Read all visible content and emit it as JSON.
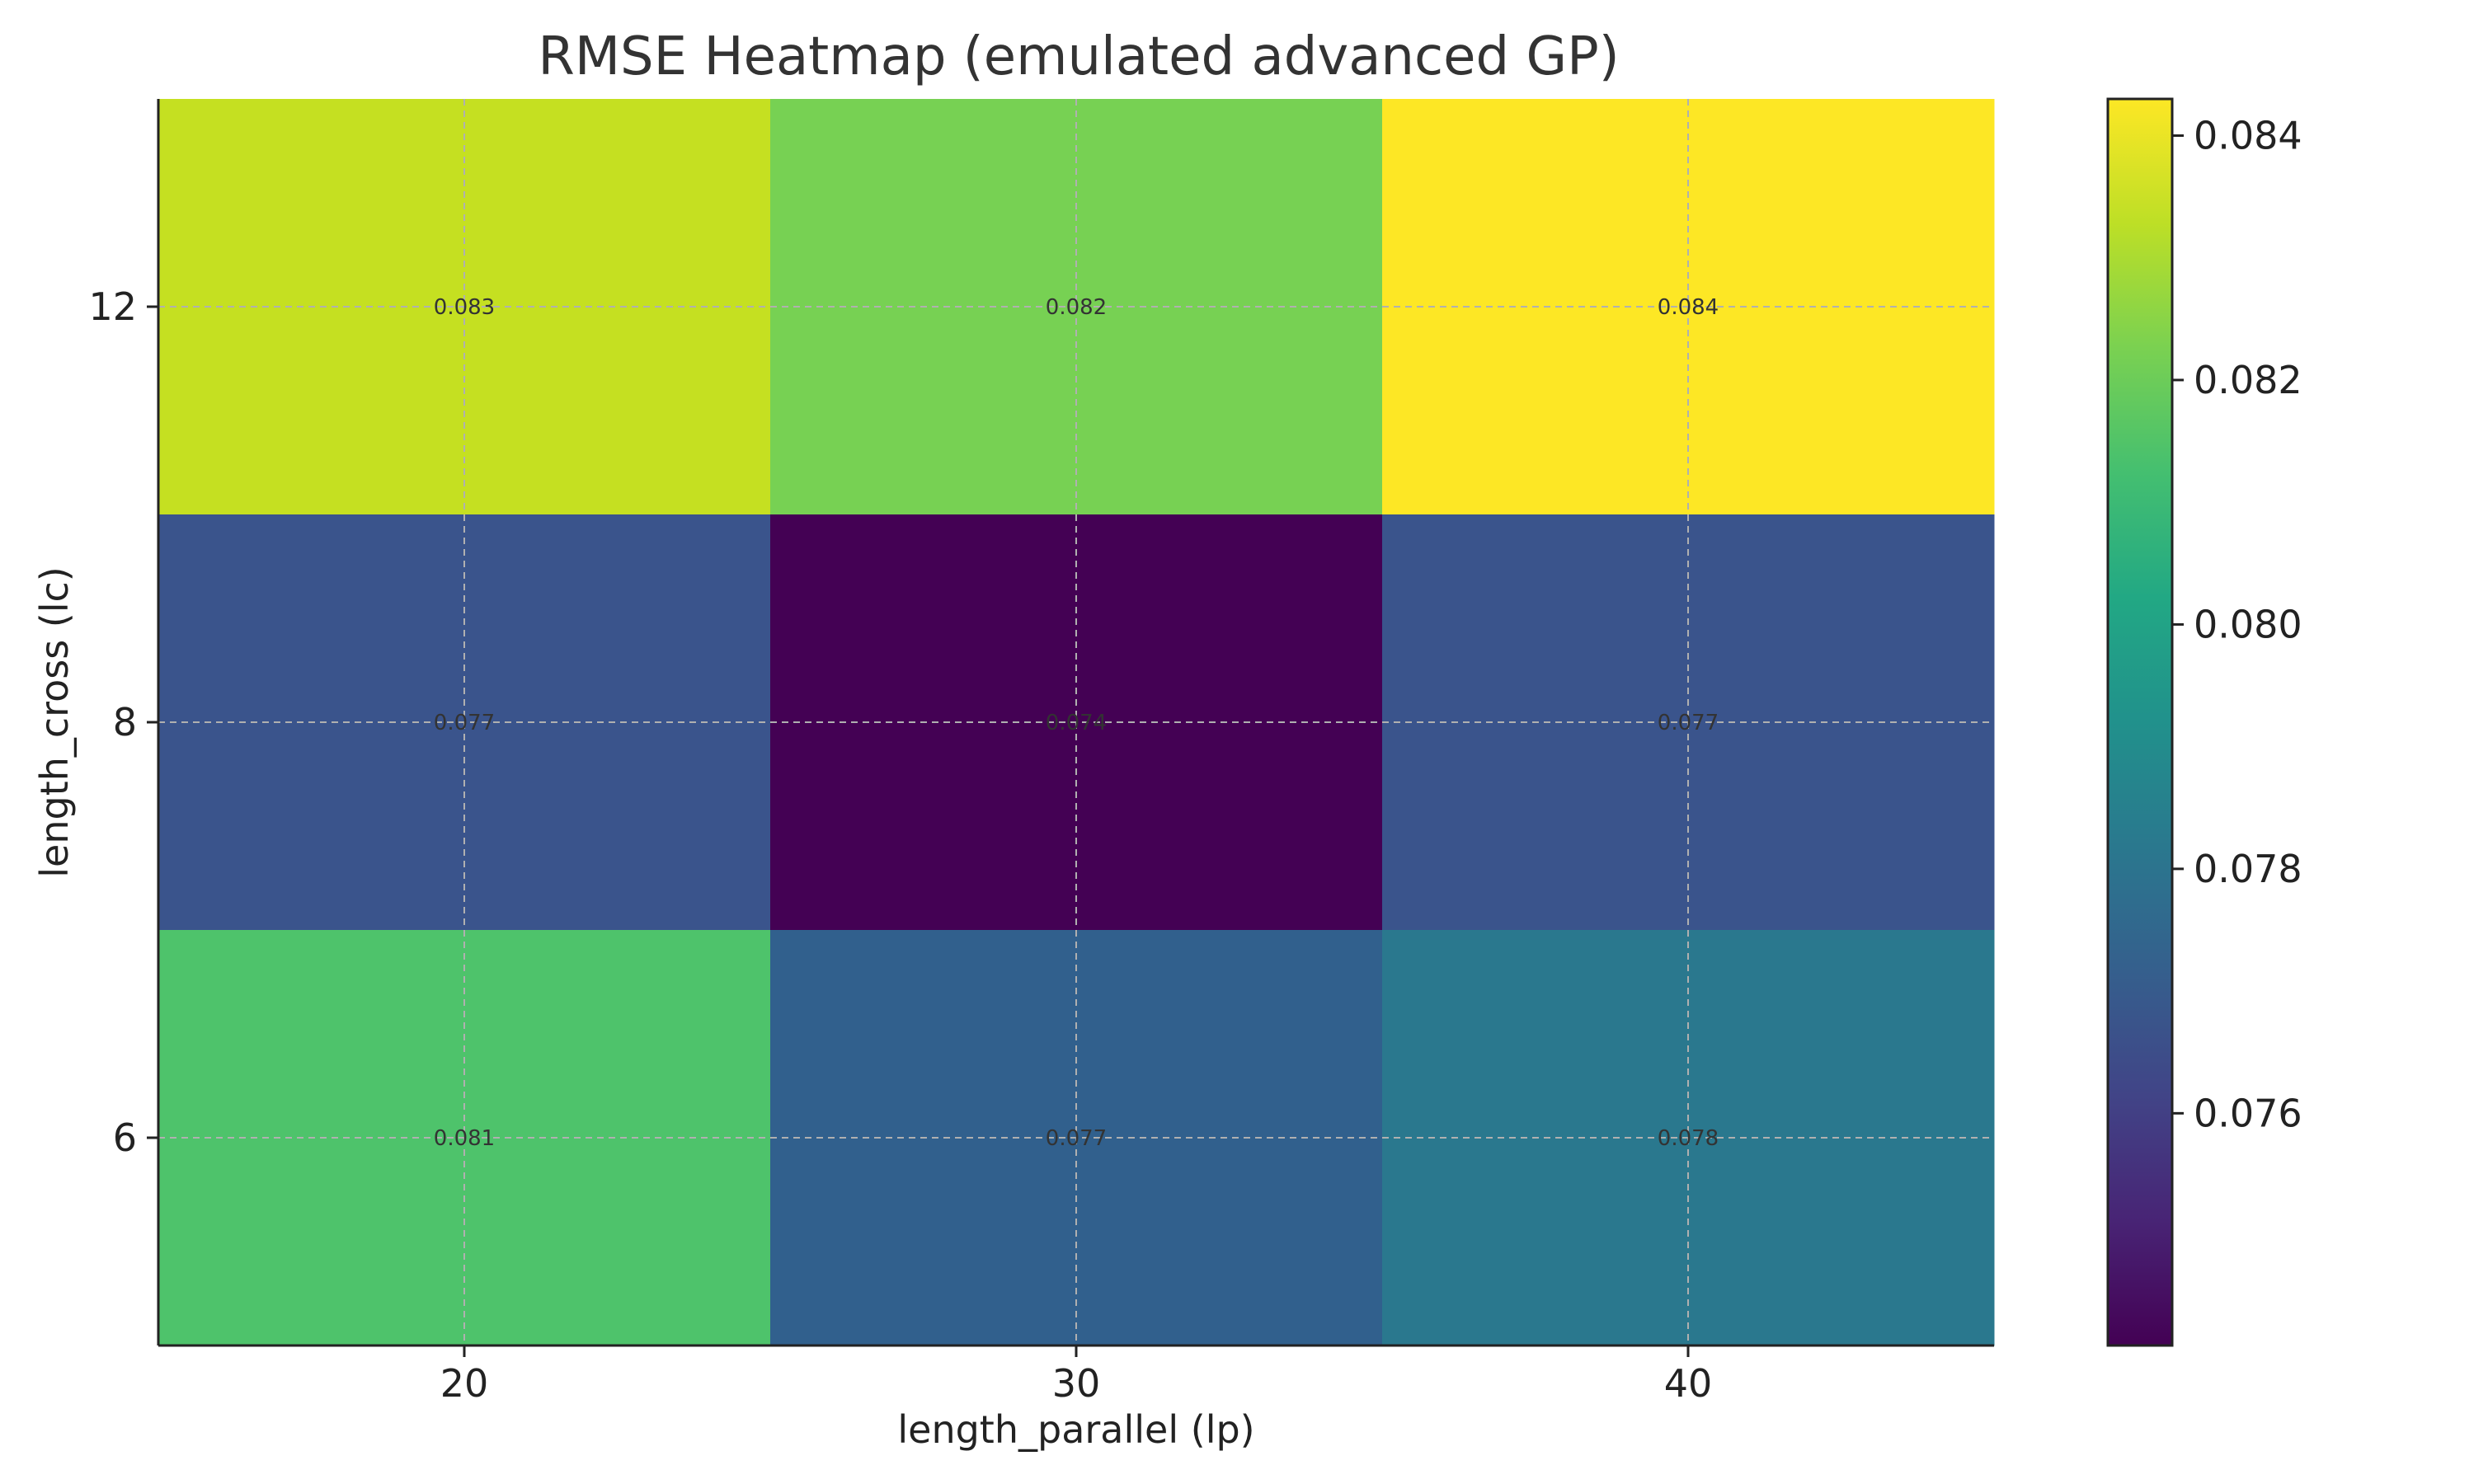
{
  "chart_data": {
    "type": "heatmap",
    "title": "RMSE Heatmap (emulated advanced GP)",
    "xlabel": "length_parallel (lp)",
    "ylabel": "length_cross (lc)",
    "x_categories": [
      "20",
      "30",
      "40"
    ],
    "y_categories": [
      "12",
      "8",
      "6"
    ],
    "values": [
      [
        0.083,
        0.082,
        0.084
      ],
      [
        0.077,
        0.074,
        0.077
      ],
      [
        0.081,
        0.077,
        0.078
      ]
    ],
    "cell_labels": [
      [
        "0.083",
        "0.082",
        "0.084"
      ],
      [
        "0.077",
        "0.074",
        "0.077"
      ],
      [
        "0.081",
        "0.077",
        "0.078"
      ]
    ],
    "colorbar": {
      "range": [
        0.0741,
        0.0843
      ],
      "ticks": [
        0.076,
        0.078,
        0.08,
        0.082,
        0.084
      ],
      "tick_labels": [
        "0.076",
        "0.078",
        "0.080",
        "0.082",
        "0.084"
      ]
    },
    "colormap": "viridis",
    "cell_colors": [
      [
        "#c5e021",
        "#77d153",
        "#fde725"
      ],
      [
        "#3a548c",
        "#440154",
        "#3a548c"
      ],
      [
        "#4ec36b",
        "#31608d",
        "#2a788e"
      ]
    ],
    "grid": true
  }
}
